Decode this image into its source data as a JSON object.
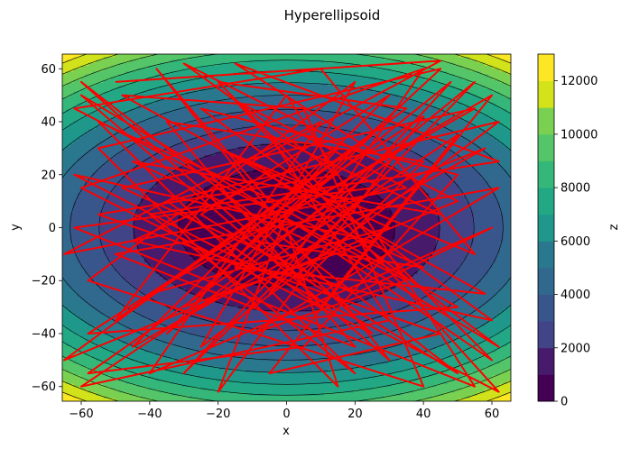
{
  "chart_data": {
    "type": "contour",
    "title": "Hyperellipsoid",
    "xlabel": "x",
    "ylabel": "y",
    "colorbar_label": "z",
    "xlim": [
      -65.536,
      65.536
    ],
    "ylim": [
      -65.536,
      65.536
    ],
    "x_ticks": [
      -60,
      -40,
      -20,
      0,
      20,
      40,
      60
    ],
    "y_ticks": [
      -60,
      -40,
      -20,
      0,
      20,
      40,
      60
    ],
    "colorbar_range": [
      0,
      13000
    ],
    "colorbar_ticks": [
      0,
      2000,
      4000,
      6000,
      8000,
      10000,
      12000
    ],
    "contour_levels": [
      0,
      1000,
      2000,
      3000,
      4000,
      5000,
      6000,
      7000,
      8000,
      9000,
      10000,
      11000,
      12000,
      13000
    ],
    "function": "z = x^2 + 2*y^2",
    "colormap": [
      "#440154",
      "#481a6c",
      "#472f7d",
      "#414487",
      "#39568c",
      "#31688e",
      "#2a788e",
      "#23888e",
      "#1f988b",
      "#22a884",
      "#35b779",
      "#54c568",
      "#7ad151",
      "#a5db36",
      "#d2e21b",
      "#fde725"
    ],
    "path_color": "#ff0000",
    "path": {
      "description": "optimizer trajectory",
      "points": [
        [
          -50,
          55
        ],
        [
          45,
          63
        ],
        [
          -10,
          25
        ],
        [
          62,
          -45
        ],
        [
          -60,
          50
        ],
        [
          30,
          -50
        ],
        [
          -38,
          60
        ],
        [
          -5,
          10
        ],
        [
          50,
          -30
        ],
        [
          -58,
          -40
        ],
        [
          40,
          42
        ],
        [
          -20,
          -62
        ],
        [
          0,
          5
        ],
        [
          55,
          45
        ],
        [
          -48,
          15
        ],
        [
          20,
          -25
        ],
        [
          60,
          0
        ],
        [
          -40,
          -55
        ],
        [
          10,
          40
        ],
        [
          -65,
          -10
        ],
        [
          35,
          15
        ],
        [
          -15,
          48
        ],
        [
          62,
          -62
        ],
        [
          -62,
          20
        ],
        [
          25,
          -5
        ],
        [
          -30,
          -30
        ],
        [
          45,
          60
        ],
        [
          -55,
          30
        ],
        [
          15,
          -60
        ],
        [
          0,
          0
        ],
        [
          58,
          30
        ],
        [
          -45,
          -45
        ],
        [
          30,
          50
        ],
        [
          -25,
          5
        ],
        [
          50,
          -55
        ],
        [
          -60,
          55
        ],
        [
          5,
          -20
        ],
        [
          40,
          25
        ],
        [
          -35,
          40
        ],
        [
          20,
          -45
        ],
        [
          -50,
          -10
        ],
        [
          62,
          15
        ],
        [
          -10,
          -40
        ],
        [
          35,
          -20
        ],
        [
          -62,
          45
        ],
        [
          10,
          60
        ],
        [
          55,
          -10
        ],
        [
          -20,
          30
        ],
        [
          30,
          0
        ],
        [
          -40,
          -25
        ],
        [
          60,
          50
        ],
        [
          -5,
          -55
        ],
        [
          45,
          -40
        ],
        [
          -55,
          5
        ],
        [
          15,
          20
        ],
        [
          -30,
          62
        ],
        [
          50,
          10
        ],
        [
          -65,
          -50
        ],
        [
          25,
          35
        ],
        [
          -15,
          -15
        ],
        [
          58,
          -25
        ],
        [
          -48,
          50
        ],
        [
          5,
          45
        ],
        [
          40,
          -60
        ],
        [
          -58,
          -20
        ],
        [
          20,
          55
        ],
        [
          -25,
          -45
        ],
        [
          62,
          40
        ],
        [
          -35,
          10
        ],
        [
          10,
          -30
        ],
        [
          50,
          35
        ],
        [
          -60,
          -60
        ],
        [
          30,
          -35
        ],
        [
          -5,
          35
        ],
        [
          45,
          5
        ],
        [
          -45,
          25
        ],
        [
          15,
          -10
        ],
        [
          60,
          -50
        ],
        [
          -20,
          55
        ],
        [
          35,
          45
        ],
        [
          -50,
          -35
        ],
        [
          0,
          50
        ],
        [
          55,
          -60
        ],
        [
          -62,
          0
        ],
        [
          25,
          15
        ],
        [
          -30,
          -55
        ],
        [
          48,
          55
        ],
        [
          -10,
          -5
        ],
        [
          40,
          -15
        ],
        [
          -55,
          40
        ],
        [
          20,
          -55
        ],
        [
          -40,
          5
        ],
        [
          62,
          25
        ],
        [
          -15,
          62
        ],
        [
          30,
          25
        ],
        [
          -58,
          -55
        ],
        [
          5,
          -45
        ],
        [
          50,
          20
        ],
        [
          -25,
          45
        ],
        [
          60,
          -35
        ],
        [
          -45,
          -5
        ],
        [
          15,
          30
        ],
        [
          -35,
          -40
        ],
        [
          55,
          55
        ],
        [
          -5,
          -25
        ],
        [
          40,
          60
        ],
        [
          -60,
          15
        ],
        [
          25,
          -40
        ],
        [
          -20,
          15
        ],
        [
          45,
          -50
        ]
      ]
    }
  }
}
